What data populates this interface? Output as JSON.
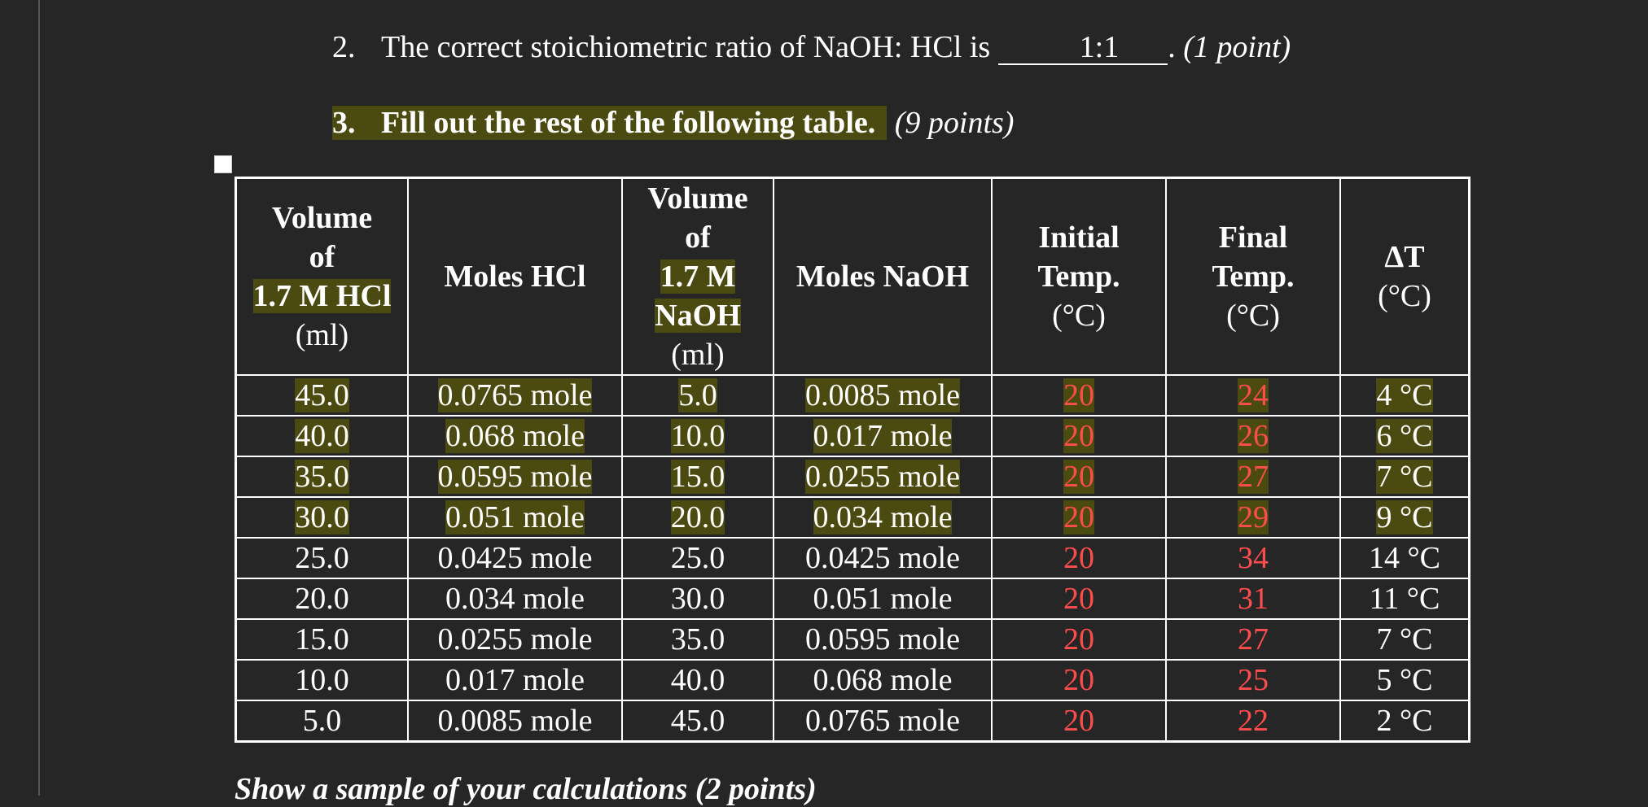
{
  "questions": [
    {
      "number": "2.",
      "text": "The correct stoichiometric ratio of NaOH: HCl is",
      "answer": "1:1",
      "end": ".",
      "points": "(1 point)"
    },
    {
      "number": "3.",
      "text": "Fill out the rest of the following table.",
      "points": "(9 points)"
    }
  ],
  "table": {
    "header": [
      [
        "Volume",
        "of",
        "1.7 M HCl",
        "(ml)"
      ],
      [
        "Moles HCl"
      ],
      [
        "Volume",
        "of",
        "1.7 M",
        "NaOH",
        "(ml)"
      ],
      [
        "Moles NaOH"
      ],
      [
        "Initial",
        "Temp.",
        "(°C)"
      ],
      [
        "Final",
        "Temp.",
        "(°C)"
      ],
      [
        "ΔT",
        "(°C)"
      ]
    ],
    "rows": [
      [
        "45.0",
        "0.0765 mole",
        "5.0",
        "0.0085 mole",
        "20",
        "24",
        "4 °C"
      ],
      [
        "40.0",
        "0.068 mole",
        "10.0",
        "0.017 mole",
        "20",
        "26",
        "6 °C"
      ],
      [
        "35.0",
        "0.0595 mole",
        "15.0",
        "0.0255 mole",
        "20",
        "27",
        "7 °C"
      ],
      [
        "30.0",
        "0.051 mole",
        "20.0",
        "0.034 mole",
        "20",
        "29",
        "9 °C"
      ],
      [
        "25.0",
        "0.0425 mole",
        "25.0",
        "0.0425 mole",
        "20",
        "34",
        "14 °C"
      ],
      [
        "20.0",
        "0.034 mole",
        "30.0",
        "0.051 mole",
        "20",
        "31",
        "11 °C"
      ],
      [
        "15.0",
        "0.0255 mole",
        "35.0",
        "0.0595 mole",
        "20",
        "27",
        "7 °C"
      ],
      [
        "10.0",
        "0.017 mole",
        "40.0",
        "0.068 mole",
        "20",
        "25",
        "5 °C"
      ],
      [
        "5.0",
        "0.0085 mole",
        "45.0",
        "0.0765 mole",
        "20",
        "22",
        "2 °C"
      ]
    ]
  },
  "footer": "Show a sample of your calculations (2 points)"
}
